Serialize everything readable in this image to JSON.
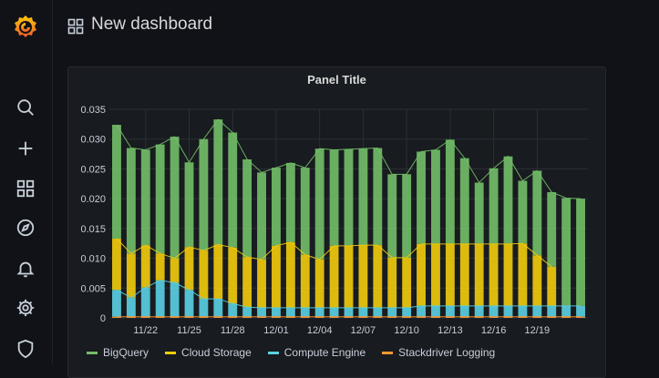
{
  "topbar": {
    "title": "New dashboard"
  },
  "sidebar": {
    "items": [
      {
        "icon": "search-icon"
      },
      {
        "icon": "plus-icon"
      },
      {
        "icon": "dashboards-icon"
      },
      {
        "icon": "compass-icon"
      },
      {
        "icon": "bell-icon"
      },
      {
        "icon": "gear-icon"
      },
      {
        "icon": "shield-icon"
      }
    ]
  },
  "panel": {
    "title": "Panel Title"
  },
  "colors": {
    "BigQuery": "#73bf69",
    "Cloud Storage": "#f2cc0c",
    "Compute Engine": "#5ad1e3",
    "Stackdriver Logging": "#ff9830"
  },
  "chart_data": {
    "type": "bar",
    "stacked": true,
    "ylim": [
      0,
      0.035
    ],
    "yticks": [
      "0",
      "0.005",
      "0.010",
      "0.015",
      "0.020",
      "0.025",
      "0.030",
      "0.035"
    ],
    "xticks": [
      "11/22",
      "11/25",
      "11/28",
      "12/01",
      "12/04",
      "12/07",
      "12/10",
      "12/13",
      "12/16",
      "12/19"
    ],
    "grid": true,
    "legend_position": "bottom-left",
    "series": [
      {
        "name": "BigQuery",
        "color": "#73bf69",
        "values": [
          0.0191,
          0.0177,
          0.016,
          0.0183,
          0.0204,
          0.0142,
          0.0187,
          0.021,
          0.0193,
          0.0164,
          0.0146,
          0.0131,
          0.0133,
          0.0146,
          0.0186,
          0.0161,
          0.0162,
          0.0162,
          0.0163,
          0.014,
          0.014,
          0.0155,
          0.0158,
          0.0175,
          0.0144,
          0.0103,
          0.0127,
          0.0147,
          0.0105,
          0.0142,
          0.0125,
          0.0181,
          0.018
        ]
      },
      {
        "name": "Cloud Storage",
        "color": "#f2cc0c",
        "values": [
          0.0086,
          0.0074,
          0.0071,
          0.0045,
          0.0041,
          0.0072,
          0.0081,
          0.0091,
          0.0094,
          0.0084,
          0.0081,
          0.0104,
          0.011,
          0.0089,
          0.0081,
          0.0104,
          0.0104,
          0.0105,
          0.0105,
          0.0084,
          0.0084,
          0.0104,
          0.0104,
          0.0104,
          0.0104,
          0.0104,
          0.0104,
          0.0104,
          0.0105,
          0.0085,
          0.0066,
          0.0,
          0.0
        ]
      },
      {
        "name": "Compute Engine",
        "color": "#5ad1e3",
        "values": [
          0.0045,
          0.0032,
          0.0049,
          0.0061,
          0.0057,
          0.0045,
          0.003,
          0.003,
          0.0022,
          0.0016,
          0.0015,
          0.0015,
          0.0015,
          0.0015,
          0.0015,
          0.0015,
          0.0015,
          0.0015,
          0.0015,
          0.0015,
          0.0015,
          0.0018,
          0.0018,
          0.0018,
          0.0018,
          0.0018,
          0.0018,
          0.0018,
          0.0018,
          0.0018,
          0.0018,
          0.0018,
          0.0018
        ]
      },
      {
        "name": "Stackdriver Logging",
        "color": "#ff9830",
        "values": [
          0.0002,
          0.0002,
          0.0002,
          0.0002,
          0.0002,
          0.0002,
          0.0002,
          0.0002,
          0.0002,
          0.0002,
          0.0002,
          0.0002,
          0.0002,
          0.0002,
          0.0002,
          0.0002,
          0.0002,
          0.0002,
          0.0002,
          0.0002,
          0.0002,
          0.0002,
          0.0002,
          0.0002,
          0.0002,
          0.0002,
          0.0002,
          0.0002,
          0.0002,
          0.0002,
          0.0002,
          0.0002,
          0.0002
        ]
      }
    ]
  }
}
